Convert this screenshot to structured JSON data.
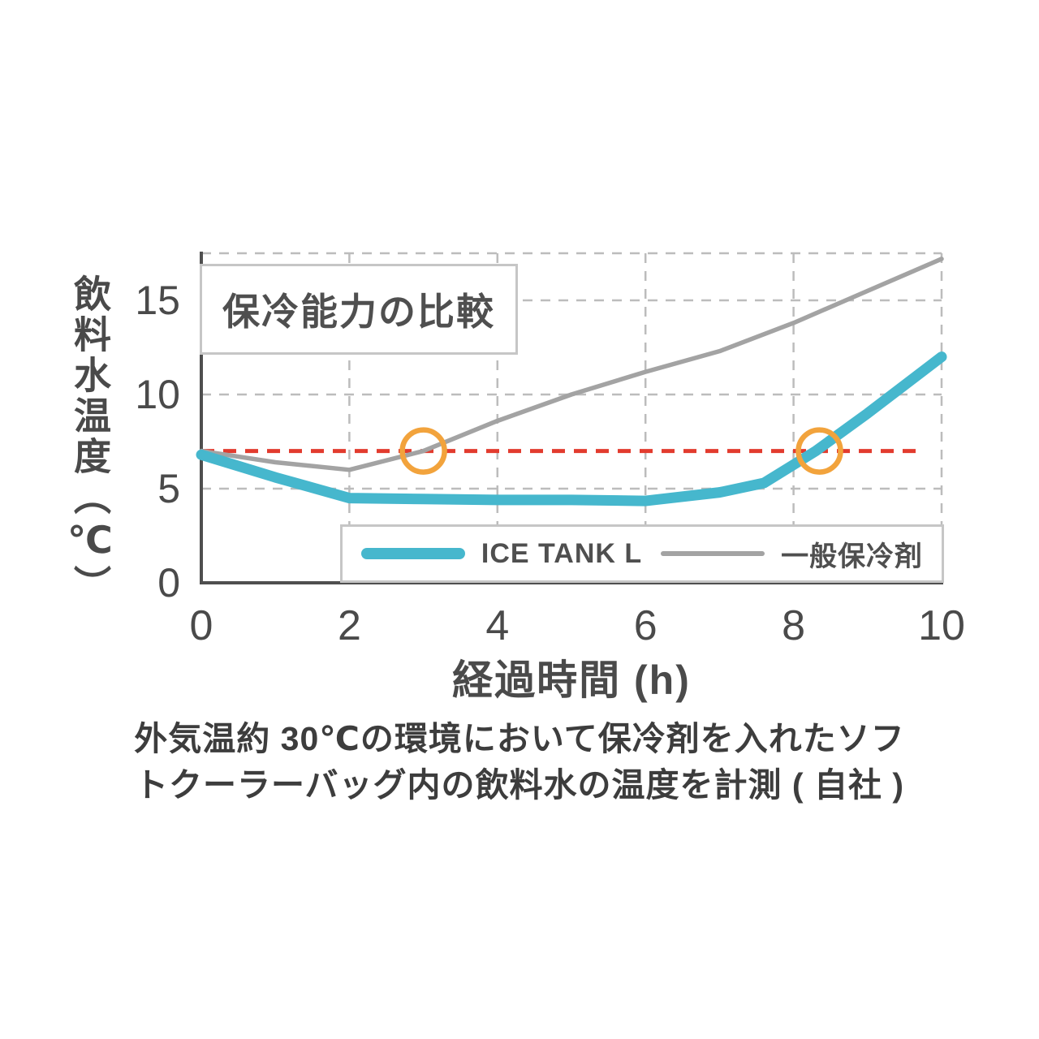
{
  "title_box": {
    "label": "保冷能力の比較"
  },
  "chart_data": {
    "type": "line",
    "title": "保冷能力の比較",
    "xlabel": "経過時間 (h)",
    "ylabel": "飲料水温度（℃）",
    "xlim": [
      0,
      10
    ],
    "ylim": [
      0,
      17.5
    ],
    "x_ticks": [
      0,
      2,
      4,
      6,
      8,
      10
    ],
    "y_ticks": [
      0,
      5,
      10,
      15
    ],
    "grid": "dashed",
    "legend_position": "inside-bottom",
    "series": [
      {
        "name": "ICE TANK L",
        "color": "#46b7cd",
        "width": 13,
        "x": [
          0,
          1,
          2,
          3,
          4,
          5,
          6,
          7,
          7.6,
          8.3,
          9,
          10
        ],
        "y": [
          6.8,
          5.6,
          4.5,
          4.45,
          4.4,
          4.4,
          4.35,
          4.8,
          5.3,
          7.0,
          9.0,
          12.0
        ]
      },
      {
        "name": "一般保冷剤",
        "color": "#a3a3a3",
        "width": 5.5,
        "x": [
          0,
          1,
          2,
          3,
          4,
          5,
          6,
          7,
          8,
          9,
          10
        ],
        "y": [
          7.0,
          6.4,
          6.0,
          7.0,
          8.6,
          10.0,
          11.2,
          12.3,
          13.8,
          15.5,
          17.2
        ]
      }
    ],
    "threshold_line": {
      "y": 7,
      "x_start": 0,
      "x_end": 9.75,
      "color": "#e23b2e",
      "style": "dashed"
    },
    "markers": [
      {
        "x": 3.0,
        "y": 7,
        "color": "#f2a33c"
      },
      {
        "x": 8.35,
        "y": 7,
        "color": "#f2a33c"
      }
    ],
    "axis_color": "#4f4f4f",
    "grid_color": "#bcbcbc",
    "tick_color": "#4a4a4a"
  },
  "caption": {
    "line1": "外気温約 30℃の環境において保冷剤を入れたソフ",
    "line2": "トクーラーバッグ内の飲料水の温度を計測 ( 自社 )"
  }
}
